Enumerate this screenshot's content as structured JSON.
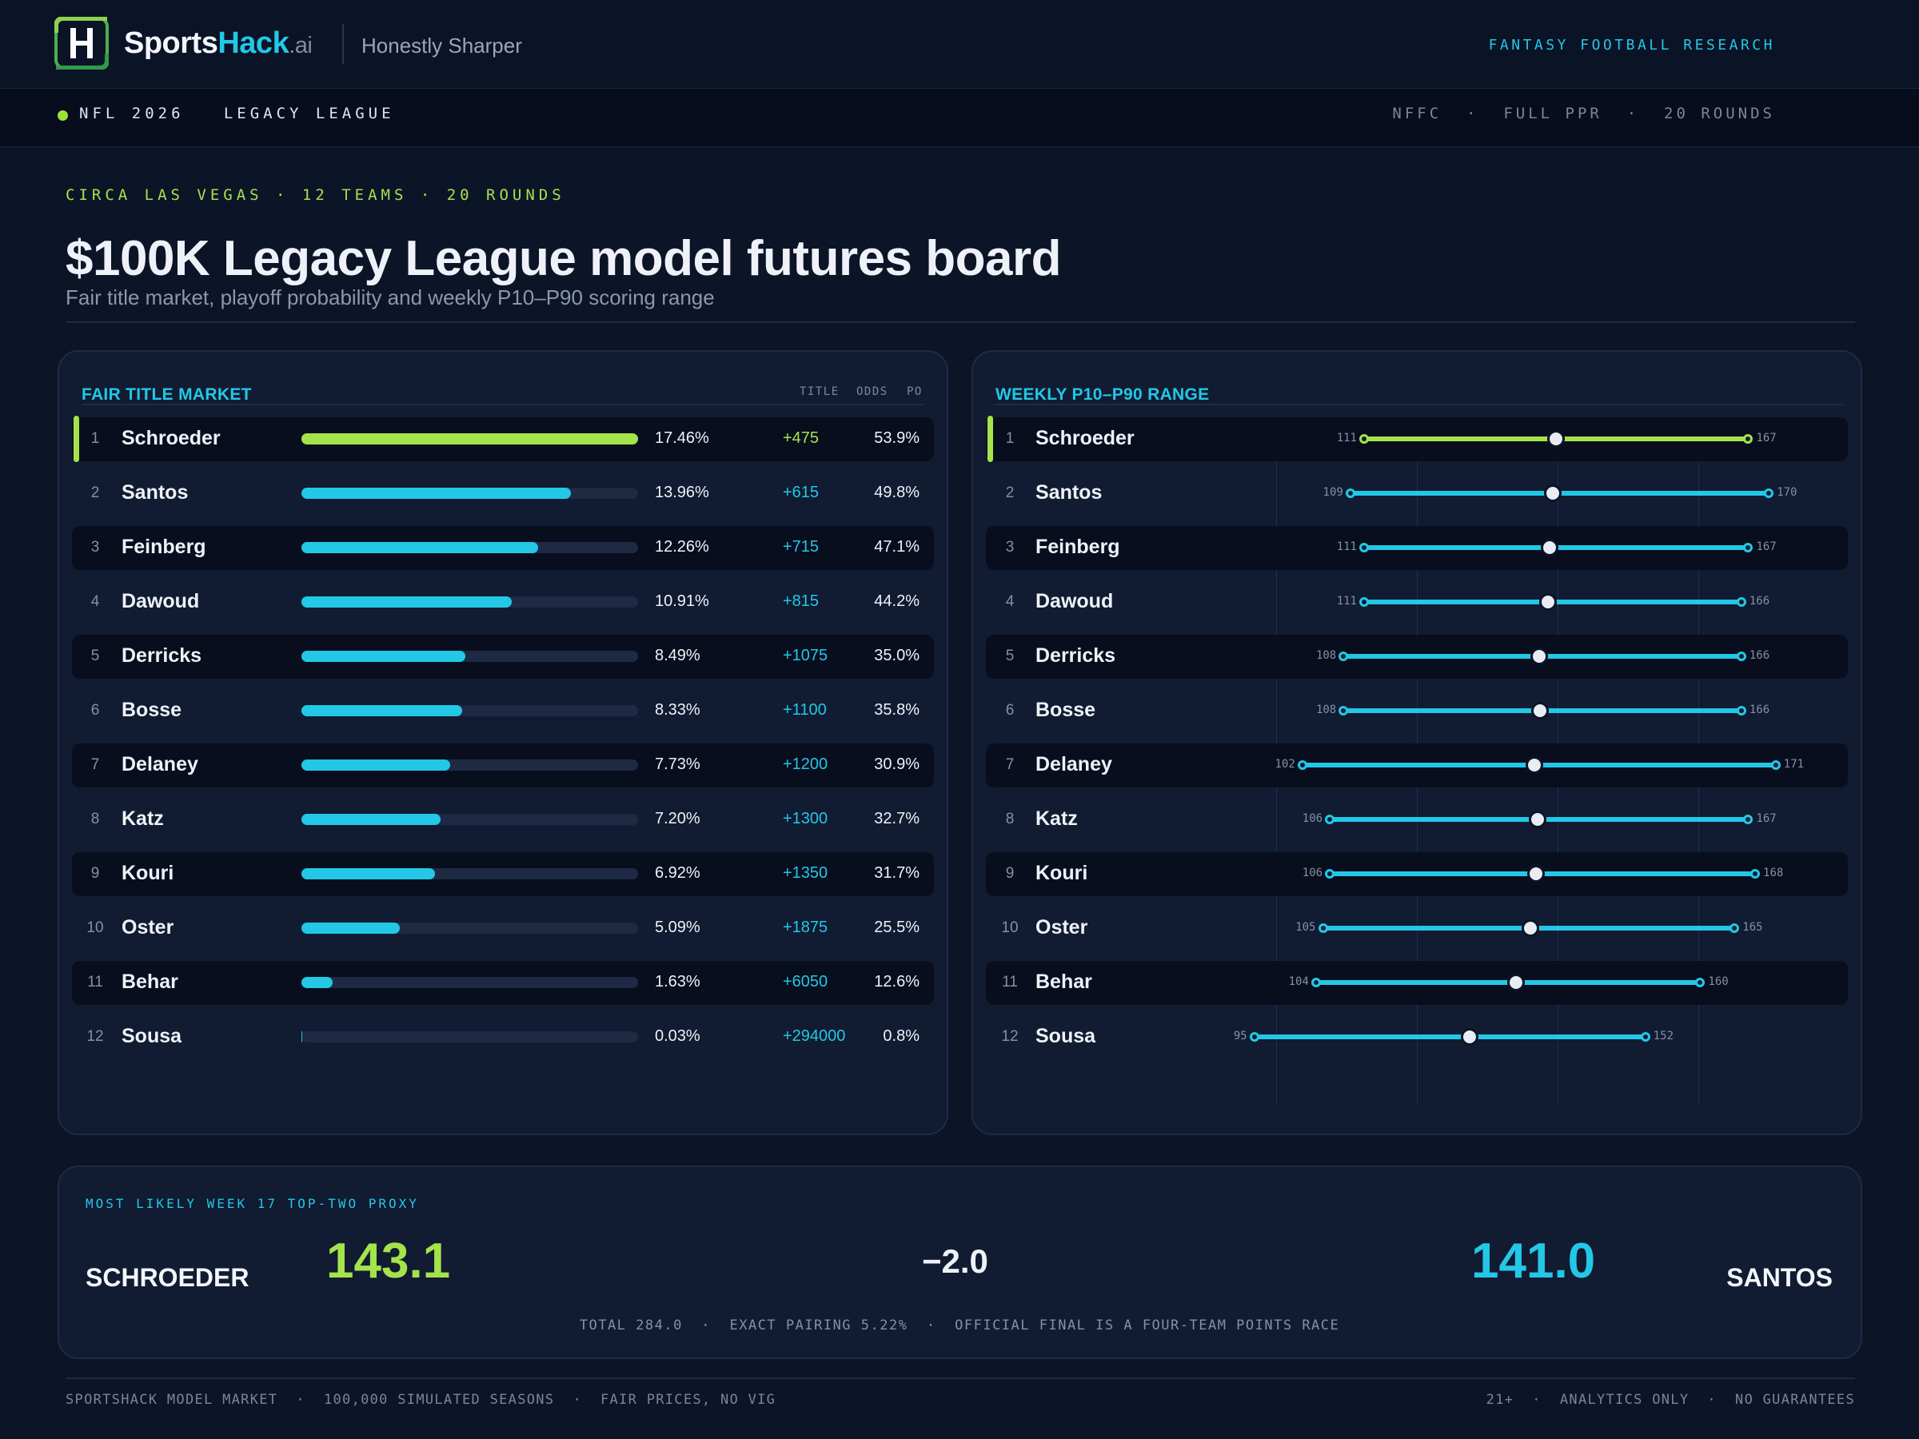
{
  "brand": {
    "name_a": "Sports",
    "name_b": "Hack",
    "name_c": ".ai",
    "tagline": "Honestly Sharper",
    "top_right": "FANTASY FOOTBALL RESEARCH"
  },
  "subbar": {
    "league": "NFL 2026   LEGACY LEAGUE",
    "meta": "NFFC  ·  FULL PPR  ·  20 ROUNDS"
  },
  "hero": {
    "eyebrow": "CIRCA LAS VEGAS · 12 TEAMS · 20 ROUNDS",
    "title": "$100K Legacy League model futures board",
    "subtitle": "Fair title market, playoff probability and weekly P10–P90 scoring range"
  },
  "market_panel": {
    "title": "FAIR TITLE MARKET",
    "col_title": "TITLE",
    "col_odds": "ODDS",
    "col_po": "PO"
  },
  "range_panel": {
    "title": "WEEKLY P10–P90 RANGE"
  },
  "teams": [
    {
      "rank": "1",
      "name": "Schroeder",
      "title_pct": "17.46%",
      "title_value": 17.46,
      "odds": "+475",
      "po": "53.9%",
      "p10": "111",
      "p90": "167",
      "p10_v": 111,
      "p90_v": 167,
      "median": 139
    },
    {
      "rank": "2",
      "name": "Santos",
      "title_pct": "13.96%",
      "title_value": 13.96,
      "odds": "+615",
      "po": "49.8%",
      "p10": "109",
      "p90": "170",
      "p10_v": 109,
      "p90_v": 170,
      "median": 138.5
    },
    {
      "rank": "3",
      "name": "Feinberg",
      "title_pct": "12.26%",
      "title_value": 12.26,
      "odds": "+715",
      "po": "47.1%",
      "p10": "111",
      "p90": "167",
      "p10_v": 111,
      "p90_v": 167,
      "median": 138
    },
    {
      "rank": "4",
      "name": "Dawoud",
      "title_pct": "10.91%",
      "title_value": 10.91,
      "odds": "+815",
      "po": "44.2%",
      "p10": "111",
      "p90": "166",
      "p10_v": 111,
      "p90_v": 166,
      "median": 137.8
    },
    {
      "rank": "5",
      "name": "Derricks",
      "title_pct": "8.49%",
      "title_value": 8.49,
      "odds": "+1075",
      "po": "35.0%",
      "p10": "108",
      "p90": "166",
      "p10_v": 108,
      "p90_v": 166,
      "median": 136.5
    },
    {
      "rank": "6",
      "name": "Bosse",
      "title_pct": "8.33%",
      "title_value": 8.33,
      "odds": "+1100",
      "po": "35.8%",
      "p10": "108",
      "p90": "166",
      "p10_v": 108,
      "p90_v": 166,
      "median": 136.6
    },
    {
      "rank": "7",
      "name": "Delaney",
      "title_pct": "7.73%",
      "title_value": 7.73,
      "odds": "+1200",
      "po": "30.9%",
      "p10": "102",
      "p90": "171",
      "p10_v": 102,
      "p90_v": 171,
      "median": 135.8
    },
    {
      "rank": "8",
      "name": "Katz",
      "title_pct": "7.20%",
      "title_value": 7.2,
      "odds": "+1300",
      "po": "32.7%",
      "p10": "106",
      "p90": "167",
      "p10_v": 106,
      "p90_v": 167,
      "median": 136.3
    },
    {
      "rank": "9",
      "name": "Kouri",
      "title_pct": "6.92%",
      "title_value": 6.92,
      "odds": "+1350",
      "po": "31.7%",
      "p10": "106",
      "p90": "168",
      "p10_v": 106,
      "p90_v": 168,
      "median": 136.1
    },
    {
      "rank": "10",
      "name": "Oster",
      "title_pct": "5.09%",
      "title_value": 5.09,
      "odds": "+1875",
      "po": "25.5%",
      "p10": "105",
      "p90": "165",
      "p10_v": 105,
      "p90_v": 165,
      "median": 135.3
    },
    {
      "rank": "11",
      "name": "Behar",
      "title_pct": "1.63%",
      "title_value": 1.63,
      "odds": "+6050",
      "po": "12.6%",
      "p10": "104",
      "p90": "160",
      "p10_v": 104,
      "p90_v": 160,
      "median": 133.2
    },
    {
      "rank": "12",
      "name": "Sousa",
      "title_pct": "0.03%",
      "title_value": 0.03,
      "odds": "+294000",
      "po": "0.8%",
      "p10": "95",
      "p90": "152",
      "p10_v": 95,
      "p90_v": 152,
      "median": 126.4
    }
  ],
  "matchup": {
    "label": "MOST LIKELY WEEK 17 TOP-TWO PROXY",
    "team_a": "SCHROEDER",
    "score_a": "143.1",
    "spread": "−2.0",
    "score_b": "141.0",
    "team_b": "SANTOS",
    "footnote": "TOTAL 284.0  ·  EXACT PAIRING 5.22%  ·  OFFICIAL FINAL IS A FOUR-TEAM POINTS RACE"
  },
  "footer": {
    "left": "SPORTSHACK MODEL MARKET  ·  100,000 SIMULATED SEASONS  ·  FAIR PRICES, NO VIG",
    "right": "21+  ·  ANALYTICS ONLY  ·  NO GUARANTEES"
  },
  "colors": {
    "lead": "#a5e34a",
    "accent": "#22c8e6",
    "bg": "#0c1428",
    "panel": "#111b31"
  }
}
